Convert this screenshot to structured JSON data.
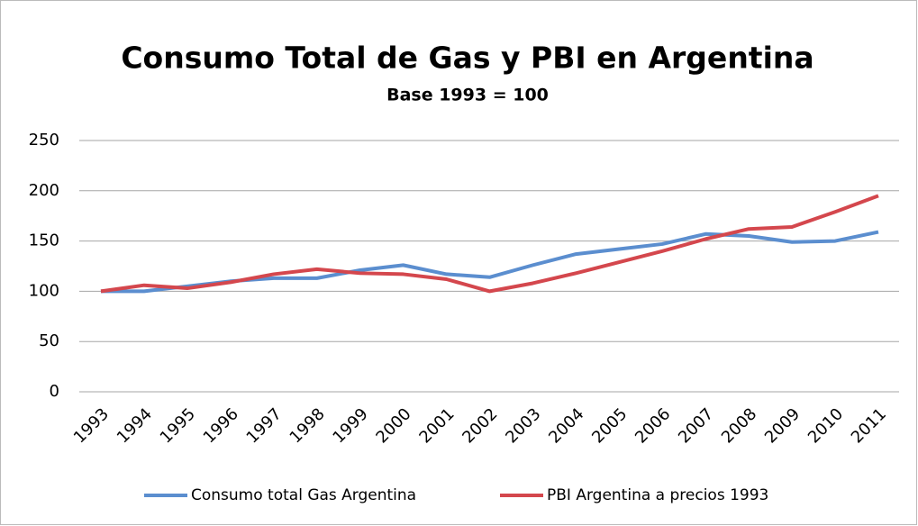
{
  "chart_data": {
    "type": "line",
    "title": "Consumo Total de Gas y PBI en Argentina",
    "subtitle": "Base 1993 = 100",
    "categories": [
      "1993",
      "1994",
      "1995",
      "1996",
      "1997",
      "1998",
      "1999",
      "2000",
      "2001",
      "2002",
      "2003",
      "2004",
      "2005",
      "2006",
      "2007",
      "2008",
      "2009",
      "2010",
      "2011"
    ],
    "series": [
      {
        "name": "Consumo total Gas Argentina",
        "color": "#5b8ecf",
        "values": [
          100,
          100,
          105,
          110,
          113,
          113,
          121,
          126,
          117,
          114,
          126,
          137,
          142,
          147,
          157,
          155,
          149,
          150,
          159
        ]
      },
      {
        "name": "PBI Argentina a precios 1993",
        "color": "#d4474d",
        "values": [
          100,
          106,
          103,
          109,
          117,
          122,
          118,
          117,
          112,
          100,
          108,
          118,
          129,
          140,
          152,
          162,
          164,
          179,
          195
        ]
      }
    ],
    "ylim": [
      0,
      250
    ],
    "yticks": [
      0,
      50,
      100,
      150,
      200,
      250
    ],
    "grid": true,
    "legend": "bottom"
  }
}
